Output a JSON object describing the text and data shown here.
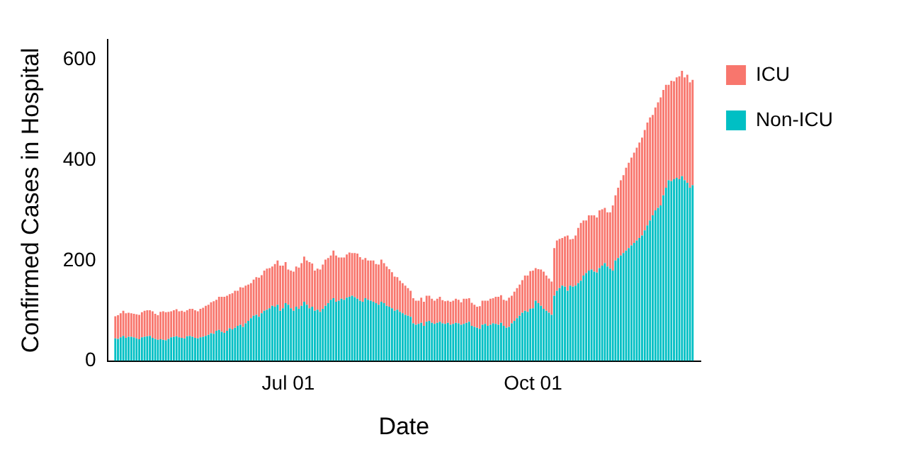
{
  "chart_data": {
    "type": "bar",
    "stacked": true,
    "xlabel": "Date",
    "ylabel": "Confirmed Cases in Hospital",
    "x": [
      "--04-27",
      "--04-28",
      "--04-29",
      "--04-30",
      "--05-01",
      "--05-02",
      "--05-03",
      "--05-04",
      "--05-05",
      "--05-06",
      "--05-07",
      "--05-08",
      "--05-09",
      "--05-10",
      "--05-11",
      "--05-12",
      "--05-13",
      "--05-14",
      "--05-15",
      "--05-16",
      "--05-17",
      "--05-18",
      "--05-19",
      "--05-20",
      "--05-21",
      "--05-22",
      "--05-23",
      "--05-24",
      "--05-25",
      "--05-26",
      "--05-27",
      "--05-28",
      "--05-29",
      "--05-30",
      "--05-31",
      "--06-01",
      "--06-02",
      "--06-03",
      "--06-04",
      "--06-05",
      "--06-06",
      "--06-07",
      "--06-08",
      "--06-09",
      "--06-10",
      "--06-11",
      "--06-12",
      "--06-13",
      "--06-14",
      "--06-15",
      "--06-16",
      "--06-17",
      "--06-18",
      "--06-19",
      "--06-20",
      "--06-21",
      "--06-22",
      "--06-23",
      "--06-24",
      "--06-25",
      "--06-26",
      "--06-27",
      "--06-28",
      "--06-29",
      "--06-30",
      "--07-01",
      "--07-02",
      "--07-03",
      "--07-04",
      "--07-05",
      "--07-06",
      "--07-07",
      "--07-08",
      "--07-09",
      "--07-10",
      "--07-11",
      "--07-12",
      "--07-13",
      "--07-14",
      "--07-15",
      "--07-16",
      "--07-17",
      "--07-18",
      "--07-19",
      "--07-20",
      "--07-21",
      "--07-22",
      "--07-23",
      "--07-24",
      "--07-25",
      "--07-26",
      "--07-27",
      "--07-28",
      "--07-29",
      "--07-30",
      "--07-31",
      "--08-01",
      "--08-02",
      "--08-03",
      "--08-04",
      "--08-05",
      "--08-06",
      "--08-07",
      "--08-08",
      "--08-09",
      "--08-10",
      "--08-11",
      "--08-12",
      "--08-13",
      "--08-14",
      "--08-15",
      "--08-16",
      "--08-17",
      "--08-18",
      "--08-19",
      "--08-20",
      "--08-21",
      "--08-22",
      "--08-23",
      "--08-24",
      "--08-25",
      "--08-26",
      "--08-27",
      "--08-28",
      "--08-29",
      "--08-30",
      "--08-31",
      "--09-01",
      "--09-02",
      "--09-03",
      "--09-04",
      "--09-05",
      "--09-06",
      "--09-07",
      "--09-08",
      "--09-09",
      "--09-10",
      "--09-11",
      "--09-12",
      "--09-13",
      "--09-14",
      "--09-15",
      "--09-16",
      "--09-17",
      "--09-18",
      "--09-19",
      "--09-20",
      "--09-21",
      "--09-22",
      "--09-23",
      "--09-24",
      "--09-25",
      "--09-26",
      "--09-27",
      "--09-28",
      "--09-29",
      "--09-30",
      "--10-01",
      "--10-02",
      "--10-03",
      "--10-04",
      "--10-05",
      "--10-06",
      "--10-07",
      "--10-08",
      "--10-09",
      "--10-10",
      "--10-11",
      "--10-12",
      "--10-13",
      "--10-14",
      "--10-15",
      "--10-16",
      "--10-17",
      "--10-18",
      "--10-19",
      "--10-20",
      "--10-21",
      "--10-22",
      "--10-23",
      "--10-24",
      "--10-25",
      "--10-26",
      "--10-27",
      "--10-28",
      "--10-29",
      "--10-30",
      "--10-31",
      "--11-01",
      "--11-02",
      "--11-03",
      "--11-04",
      "--11-05",
      "--11-06",
      "--11-07",
      "--11-08",
      "--11-09",
      "--11-10",
      "--11-11",
      "--11-12",
      "--11-13",
      "--11-14",
      "--11-15",
      "--11-16",
      "--11-17",
      "--11-18",
      "--11-19",
      "--11-20",
      "--11-21",
      "--11-22",
      "--11-23",
      "--11-24",
      "--11-25",
      "--11-26",
      "--11-27",
      "--11-28",
      "--11-29",
      "--11-30"
    ],
    "series": [
      {
        "name": "Non-ICU",
        "color": "#00bfc4",
        "values": [
          45,
          44,
          47,
          50,
          46,
          48,
          48,
          47,
          45,
          43,
          47,
          48,
          49,
          50,
          46,
          44,
          42,
          43,
          42,
          41,
          44,
          47,
          48,
          49,
          47,
          46,
          45,
          49,
          50,
          48,
          46,
          45,
          47,
          48,
          50,
          52,
          55,
          54,
          60,
          62,
          58,
          56,
          60,
          65,
          63,
          66,
          70,
          72,
          68,
          75,
          80,
          85,
          90,
          92,
          88,
          95,
          100,
          102,
          105,
          110,
          108,
          112,
          100,
          105,
          115,
          112,
          105,
          100,
          108,
          104,
          110,
          118,
          112,
          105,
          108,
          100,
          102,
          98,
          104,
          110,
          115,
          122,
          125,
          118,
          120,
          124,
          122,
          126,
          128,
          130,
          127,
          124,
          120,
          118,
          125,
          122,
          120,
          118,
          115,
          112,
          118,
          115,
          110,
          108,
          105,
          100,
          102,
          98,
          95,
          92,
          90,
          88,
          75,
          72,
          74,
          76,
          70,
          78,
          80,
          76,
          74,
          76,
          78,
          75,
          74,
          76,
          72,
          74,
          76,
          75,
          72,
          74,
          76,
          78,
          70,
          68,
          66,
          64,
          72,
          74,
          70,
          72,
          75,
          74,
          72,
          76,
          70,
          66,
          68,
          75,
          80,
          85,
          90,
          96,
          100,
          98,
          104,
          105,
          120,
          115,
          110,
          104,
          100,
          96,
          92,
          130,
          140,
          145,
          150,
          148,
          140,
          150,
          148,
          150,
          155,
          160,
          170,
          175,
          180,
          182,
          178,
          176,
          185,
          190,
          195,
          188,
          184,
          180,
          200,
          205,
          210,
          215,
          220,
          225,
          230,
          235,
          240,
          245,
          250,
          260,
          270,
          280,
          290,
          300,
          305,
          310,
          330,
          345,
          360,
          358,
          362,
          365,
          362,
          368,
          360,
          355,
          345,
          350
        ]
      },
      {
        "name": "ICU",
        "color": "#f8766d",
        "values": [
          44,
          47,
          48,
          50,
          49,
          48,
          47,
          47,
          48,
          49,
          50,
          52,
          52,
          51,
          53,
          50,
          49,
          55,
          57,
          56,
          54,
          52,
          53,
          54,
          52,
          54,
          53,
          52,
          54,
          56,
          55,
          54,
          57,
          58,
          60,
          60,
          62,
          65,
          62,
          66,
          70,
          72,
          70,
          68,
          72,
          74,
          70,
          75,
          78,
          75,
          72,
          70,
          72,
          75,
          78,
          76,
          80,
          82,
          80,
          78,
          85,
          88,
          90,
          85,
          82,
          70,
          75,
          78,
          80,
          82,
          85,
          90,
          88,
          92,
          86,
          80,
          82,
          84,
          88,
          92,
          90,
          88,
          95,
          92,
          86,
          82,
          84,
          86,
          88,
          85,
          88,
          90,
          87,
          84,
          80,
          78,
          80,
          82,
          78,
          80,
          84,
          80,
          78,
          75,
          72,
          68,
          65,
          62,
          60,
          58,
          55,
          52,
          50,
          48,
          46,
          50,
          48,
          52,
          50,
          48,
          46,
          48,
          50,
          46,
          45,
          44,
          46,
          46,
          48,
          47,
          45,
          50,
          48,
          47,
          46,
          44,
          42,
          45,
          48,
          46,
          50,
          52,
          50,
          54,
          56,
          55,
          52,
          54,
          58,
          55,
          58,
          60,
          62,
          65,
          70,
          72,
          75,
          75,
          65,
          68,
          72,
          74,
          70,
          68,
          66,
          95,
          100,
          98,
          95,
          100,
          110,
          92,
          95,
          100,
          110,
          115,
          110,
          105,
          110,
          108,
          112,
          110,
          115,
          112,
          110,
          108,
          112,
          130,
          130,
          140,
          150,
          155,
          165,
          170,
          175,
          180,
          185,
          190,
          195,
          200,
          205,
          205,
          200,
          205,
          210,
          215,
          210,
          205,
          190,
          200,
          195,
          200,
          205,
          210,
          205,
          215,
          210,
          210
        ]
      }
    ],
    "xlim": [
      "--04-24",
      "--12-03"
    ],
    "xticks": [
      {
        "value": "--07-01",
        "label": "Jul 01"
      },
      {
        "value": "--10-01",
        "label": "Oct 01"
      }
    ],
    "ylim": [
      0,
      640
    ],
    "yticks": [
      0,
      200,
      400,
      600
    ],
    "grid": false,
    "legend": "right"
  }
}
